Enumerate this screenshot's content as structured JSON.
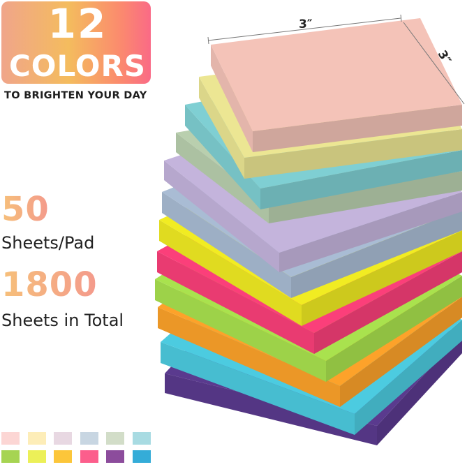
{
  "badge": {
    "count": "12",
    "word": "COLORS",
    "tagline": "TO BRIGHTEN YOUR DAY"
  },
  "stats": [
    {
      "value": "50",
      "label": "Sheets/Pad"
    },
    {
      "value": "1800",
      "label": "Sheets in Total"
    }
  ],
  "dimensions": {
    "width": "3″",
    "depth": "3″"
  },
  "pads_top_to_bottom": [
    "#f4c3b8",
    "#ece693",
    "#7fcfd3",
    "#b9cfae",
    "#c4b4dc",
    "#a9bcd4",
    "#f1ec22",
    "#fb3f7a",
    "#a9e24e",
    "#fda22a",
    "#4ccbe0",
    "#5a3a8e"
  ],
  "swatches": [
    [
      "#fcd6d4",
      "#fdedb8",
      "#e8d8e2",
      "#c8d6e2",
      "#d2ddc8",
      "#a8dbe2"
    ],
    [
      "#a6d452",
      "#ecf058",
      "#fcc63a",
      "#fc5e8c",
      "#8c4c9c",
      "#34acd8"
    ]
  ]
}
